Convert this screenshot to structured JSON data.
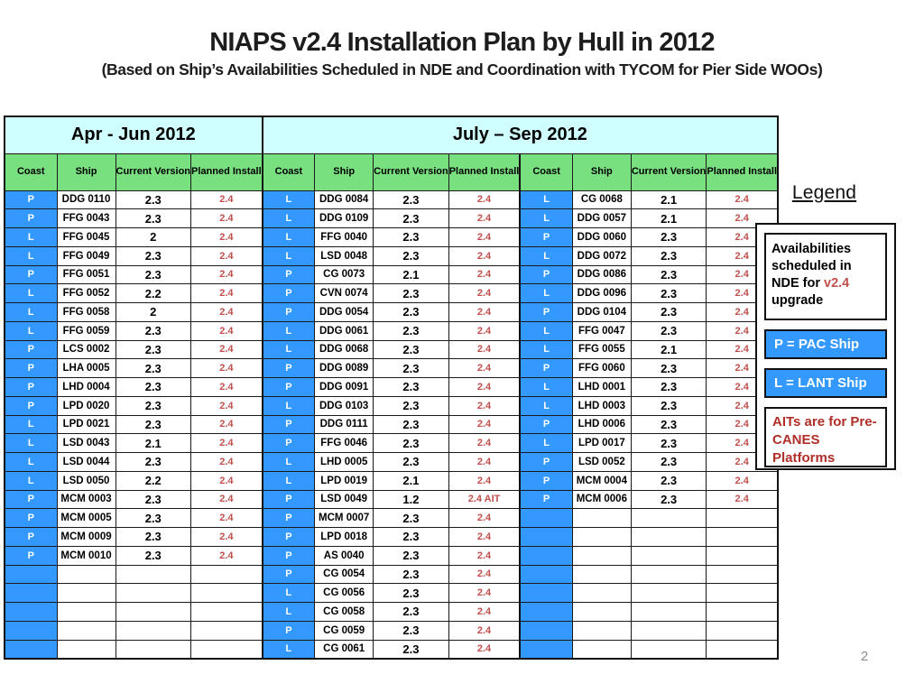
{
  "slide": {
    "title": "NIAPS v2.4 Installation Plan by Hull in 2012",
    "subtitle": "(Based on Ship’s Availabilities Scheduled in NDE and Coordination with TYCOM for Pier Side WOOs)",
    "page_number": "2"
  },
  "colors": {
    "coast_blue": "#3399FF",
    "header_green": "#79E07F",
    "quarter_cyan": "#CFFFFF",
    "planned_red": "#C0504D",
    "legend_red": "#B02E28"
  },
  "table": {
    "quarters": [
      {
        "label": "Apr - Jun 2012",
        "colspan": 4
      },
      {
        "label": "July – Sep 2012",
        "colspan": 8
      }
    ],
    "column_headers": [
      "Coast",
      "Ship",
      "Current Version",
      "Planned Install"
    ],
    "groups": [
      {
        "quarter": "Apr - Jun 2012",
        "rows": [
          [
            "P",
            "DDG 0110",
            "2.3",
            "2.4"
          ],
          [
            "P",
            "FFG 0043",
            "2.3",
            "2.4"
          ],
          [
            "L",
            "FFG 0045",
            "2",
            "2.4"
          ],
          [
            "L",
            "FFG 0049",
            "2.3",
            "2.4"
          ],
          [
            "P",
            "FFG 0051",
            "2.3",
            "2.4"
          ],
          [
            "L",
            "FFG 0052",
            "2.2",
            "2.4"
          ],
          [
            "L",
            "FFG 0058",
            "2",
            "2.4"
          ],
          [
            "L",
            "FFG 0059",
            "2.3",
            "2.4"
          ],
          [
            "P",
            "LCS 0002",
            "2.3",
            "2.4"
          ],
          [
            "P",
            "LHA 0005",
            "2.3",
            "2.4"
          ],
          [
            "P",
            "LHD 0004",
            "2.3",
            "2.4"
          ],
          [
            "P",
            "LPD 0020",
            "2.3",
            "2.4"
          ],
          [
            "L",
            "LPD 0021",
            "2.3",
            "2.4"
          ],
          [
            "L",
            "LSD 0043",
            "2.1",
            "2.4"
          ],
          [
            "L",
            "LSD 0044",
            "2.3",
            "2.4"
          ],
          [
            "L",
            "LSD 0050",
            "2.2",
            "2.4"
          ],
          [
            "P",
            "MCM 0003",
            "2.3",
            "2.4"
          ],
          [
            "P",
            "MCM 0005",
            "2.3",
            "2.4"
          ],
          [
            "P",
            "MCM 0009",
            "2.3",
            "2.4"
          ],
          [
            "P",
            "MCM 0010",
            "2.3",
            "2.4"
          ],
          [
            "",
            "",
            "",
            ""
          ],
          [
            "",
            "",
            "",
            ""
          ],
          [
            "",
            "",
            "",
            ""
          ],
          [
            "",
            "",
            "",
            ""
          ],
          [
            "",
            "",
            "",
            ""
          ]
        ]
      },
      {
        "quarter": "July – Sep 2012",
        "rows": [
          [
            "L",
            "DDG 0084",
            "2.3",
            "2.4"
          ],
          [
            "L",
            "DDG 0109",
            "2.3",
            "2.4"
          ],
          [
            "L",
            "FFG 0040",
            "2.3",
            "2.4"
          ],
          [
            "L",
            "LSD 0048",
            "2.3",
            "2.4"
          ],
          [
            "P",
            "CG 0073",
            "2.1",
            "2.4"
          ],
          [
            "P",
            "CVN 0074",
            "2.3",
            "2.4"
          ],
          [
            "P",
            "DDG 0054",
            "2.3",
            "2.4"
          ],
          [
            "L",
            "DDG 0061",
            "2.3",
            "2.4"
          ],
          [
            "L",
            "DDG 0068",
            "2.3",
            "2.4"
          ],
          [
            "P",
            "DDG 0089",
            "2.3",
            "2.4"
          ],
          [
            "P",
            "DDG 0091",
            "2.3",
            "2.4"
          ],
          [
            "L",
            "DDG 0103",
            "2.3",
            "2.4"
          ],
          [
            "P",
            "DDG 0111",
            "2.3",
            "2.4"
          ],
          [
            "P",
            "FFG 0046",
            "2.3",
            "2.4"
          ],
          [
            "L",
            "LHD 0005",
            "2.3",
            "2.4"
          ],
          [
            "L",
            "LPD 0019",
            "2.1",
            "2.4"
          ],
          [
            "P",
            "LSD 0049",
            "1.2",
            "2.4 AIT"
          ],
          [
            "P",
            "MCM 0007",
            "2.3",
            "2.4"
          ],
          [
            "P",
            "LPD 0018",
            "2.3",
            "2.4"
          ],
          [
            "P",
            "AS 0040",
            "2.3",
            "2.4"
          ],
          [
            "P",
            "CG 0054",
            "2.3",
            "2.4"
          ],
          [
            "L",
            "CG 0056",
            "2.3",
            "2.4"
          ],
          [
            "L",
            "CG 0058",
            "2.3",
            "2.4"
          ],
          [
            "P",
            "CG 0059",
            "2.3",
            "2.4"
          ],
          [
            "L",
            "CG 0061",
            "2.3",
            "2.4"
          ]
        ]
      },
      {
        "quarter": "July – Sep 2012",
        "rows": [
          [
            "L",
            "CG 0068",
            "2.1",
            "2.4"
          ],
          [
            "L",
            "DDG 0057",
            "2.1",
            "2.4"
          ],
          [
            "P",
            "DDG 0060",
            "2.3",
            "2.4"
          ],
          [
            "L",
            "DDG 0072",
            "2.3",
            "2.4"
          ],
          [
            "P",
            "DDG 0086",
            "2.3",
            "2.4"
          ],
          [
            "L",
            "DDG 0096",
            "2.3",
            "2.4"
          ],
          [
            "P",
            "DDG 0104",
            "2.3",
            "2.4"
          ],
          [
            "L",
            "FFG 0047",
            "2.3",
            "2.4"
          ],
          [
            "L",
            "FFG 0055",
            "2.1",
            "2.4"
          ],
          [
            "P",
            "FFG 0060",
            "2.3",
            "2.4"
          ],
          [
            "L",
            "LHD 0001",
            "2.3",
            "2.4"
          ],
          [
            "L",
            "LHD 0003",
            "2.3",
            "2.4"
          ],
          [
            "P",
            "LHD 0006",
            "2.3",
            "2.4"
          ],
          [
            "L",
            "LPD 0017",
            "2.3",
            "2.4"
          ],
          [
            "P",
            "LSD 0052",
            "2.3",
            "2.4"
          ],
          [
            "P",
            "MCM 0004",
            "2.3",
            "2.4"
          ],
          [
            "P",
            "MCM 0006",
            "2.3",
            "2.4"
          ],
          [
            "",
            "",
            "",
            ""
          ],
          [
            "",
            "",
            "",
            ""
          ],
          [
            "",
            "",
            "",
            ""
          ],
          [
            "",
            "",
            "",
            ""
          ],
          [
            "",
            "",
            "",
            ""
          ],
          [
            "",
            "",
            "",
            ""
          ],
          [
            "",
            "",
            "",
            ""
          ],
          [
            "",
            "",
            "",
            ""
          ]
        ]
      }
    ]
  },
  "legend": {
    "title": "Legend",
    "note": {
      "prefix": "Availabilities scheduled in NDE for ",
      "highlight": "v2.4",
      "suffix": " upgrade"
    },
    "pac_label": "P = PAC Ship",
    "lant_label": "L = LANT Ship",
    "aits_note": "AITs are for Pre-CANES Platforms"
  }
}
